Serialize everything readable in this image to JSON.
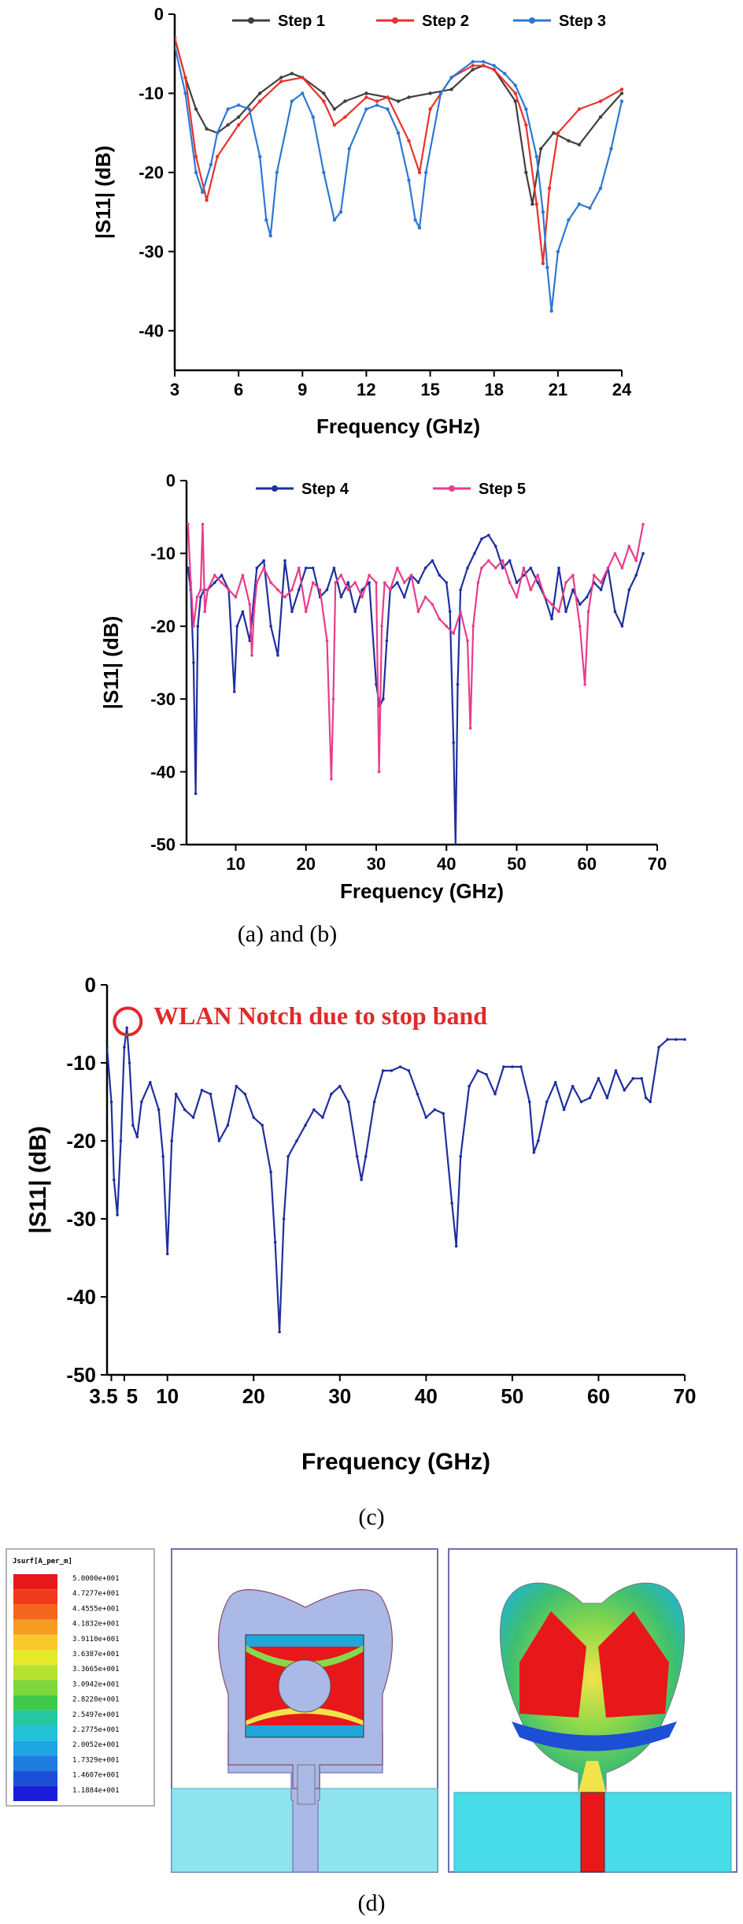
{
  "captions": {
    "ab": "(a) and (b)",
    "c": "(c)",
    "d": "(d)"
  },
  "chart_data": [
    {
      "id": "a",
      "type": "line",
      "xlabel": "Frequency (GHz)",
      "ylabel": "|S11| (dB)",
      "xlim": [
        3,
        24
      ],
      "ylim": [
        -45,
        0
      ],
      "xticks": [
        3,
        6,
        9,
        12,
        15,
        18,
        21,
        24
      ],
      "yticks": [
        0,
        -10,
        -20,
        -30,
        -40
      ],
      "legend": "top",
      "series": [
        {
          "name": "Step 1",
          "color": "#404040",
          "x": [
            3,
            3.5,
            4,
            4.5,
            5,
            5.5,
            6,
            7,
            8,
            8.5,
            9,
            10,
            10.5,
            11,
            12,
            13,
            13.5,
            14,
            15,
            16,
            17,
            17.5,
            18,
            19,
            19.5,
            19.8,
            20.2,
            20.8,
            21.5,
            22,
            23,
            24
          ],
          "y": [
            -3,
            -8,
            -12,
            -14.5,
            -15,
            -14,
            -13,
            -10,
            -8,
            -7.5,
            -8,
            -10,
            -12,
            -11,
            -10,
            -10.5,
            -11,
            -10.5,
            -10,
            -9.5,
            -7,
            -6.5,
            -7,
            -11,
            -20,
            -24,
            -17,
            -15,
            -16,
            -16.5,
            -13,
            -10
          ]
        },
        {
          "name": "Step 2",
          "color": "#e8322d",
          "x": [
            3,
            3.5,
            4,
            4.5,
            5,
            6,
            7,
            8,
            9,
            10,
            10.5,
            11,
            12,
            12.5,
            13,
            14,
            14.5,
            15,
            16,
            17,
            17.5,
            18,
            19,
            19.5,
            20,
            20.3,
            20.6,
            21,
            22,
            23,
            24
          ],
          "y": [
            -3,
            -8,
            -18,
            -23.5,
            -18,
            -14,
            -11,
            -8.5,
            -8,
            -11,
            -14,
            -13,
            -10.5,
            -11,
            -10.5,
            -16,
            -20,
            -12,
            -8,
            -6.5,
            -6.5,
            -7,
            -10,
            -14,
            -24,
            -31.5,
            -22,
            -15,
            -12,
            -11,
            -9.5
          ]
        },
        {
          "name": "Step 3",
          "color": "#2d78d2",
          "x": [
            3,
            3.5,
            4,
            4.3,
            4.7,
            5,
            5.5,
            6,
            6.5,
            7,
            7.3,
            7.5,
            7.8,
            8.5,
            9,
            9.5,
            10,
            10.5,
            10.8,
            11.2,
            12,
            12.5,
            13,
            13.5,
            14,
            14.3,
            14.5,
            14.8,
            15.5,
            16,
            17,
            17.5,
            18,
            18.5,
            19,
            19.5,
            20,
            20.3,
            20.5,
            20.7,
            21,
            21.5,
            22,
            22.5,
            23,
            23.5,
            24
          ],
          "y": [
            -4,
            -10,
            -20,
            -22.5,
            -19,
            -15,
            -12,
            -11.5,
            -12,
            -18,
            -26,
            -28,
            -20,
            -11,
            -10,
            -13,
            -20,
            -26,
            -25,
            -17,
            -12,
            -11.5,
            -12,
            -15,
            -21,
            -26,
            -27,
            -20,
            -10,
            -8,
            -6,
            -6,
            -6.5,
            -7.5,
            -9,
            -12,
            -18,
            -25,
            -32,
            -37.5,
            -30,
            -26,
            -24,
            -24.5,
            -22,
            -17,
            -11
          ]
        }
      ]
    },
    {
      "id": "b",
      "type": "line",
      "xlabel": "Frequency (GHz)",
      "ylabel": "|S11| (dB)",
      "xlim": [
        3,
        70
      ],
      "ylim": [
        -50,
        0
      ],
      "xticks": [
        10,
        20,
        30,
        40,
        50,
        60,
        70
      ],
      "yticks": [
        0,
        -10,
        -20,
        -30,
        -40,
        -50
      ],
      "legend": "top",
      "series": [
        {
          "name": "Step 4",
          "color": "#1f2f9e",
          "x": [
            3.2,
            3.6,
            4,
            4.3,
            4.6,
            5,
            5.5,
            6,
            7,
            8,
            9,
            9.8,
            10.2,
            11,
            12,
            13,
            14,
            15,
            16,
            17,
            18,
            19,
            20,
            21,
            22,
            23,
            24,
            25,
            26,
            27,
            28,
            29,
            30,
            30.5,
            31,
            31.5,
            32,
            33,
            34,
            35,
            36,
            37,
            38,
            39,
            40,
            40.5,
            41,
            41.3,
            41.6,
            42,
            43,
            44,
            45,
            46,
            47,
            48,
            49,
            50,
            51,
            52,
            53,
            54,
            55,
            56,
            57,
            58,
            59,
            60,
            61,
            62,
            63,
            64,
            65,
            66,
            67,
            68
          ],
          "y": [
            -12,
            -15,
            -25,
            -43,
            -20,
            -16,
            -15,
            -15,
            -14,
            -13,
            -15,
            -29,
            -20,
            -18,
            -22,
            -12,
            -11,
            -20,
            -24,
            -11,
            -18,
            -15,
            -12,
            -12,
            -16,
            -15,
            -12,
            -16,
            -14,
            -18,
            -15,
            -14,
            -28,
            -31,
            -30,
            -22,
            -15,
            -14,
            -16,
            -13,
            -14,
            -12,
            -11,
            -13,
            -14,
            -18,
            -36,
            -50,
            -28,
            -15,
            -12,
            -10,
            -8,
            -7.5,
            -9,
            -12,
            -11,
            -14,
            -13,
            -12,
            -14,
            -16,
            -19,
            -12,
            -18,
            -15,
            -17,
            -16,
            -14,
            -15,
            -12,
            -18,
            -20,
            -15,
            -13,
            -10
          ]
        },
        {
          "name": "Step 5",
          "color": "#e83d8a",
          "x": [
            3.2,
            3.6,
            4,
            4.5,
            5,
            5.3,
            5.6,
            6,
            7,
            8,
            9,
            10,
            11,
            12,
            12.3,
            12.6,
            13,
            14,
            15,
            16,
            17,
            18,
            19,
            20,
            21,
            22,
            23,
            23.6,
            23.9,
            24.2,
            25,
            26,
            27,
            28,
            29,
            30,
            30.4,
            30.8,
            31.2,
            32,
            33,
            34,
            35,
            36,
            37,
            38,
            39,
            40,
            41,
            42,
            43,
            43.4,
            43.8,
            44.5,
            45,
            46,
            47,
            48,
            49,
            50,
            51,
            52,
            53,
            54,
            55,
            56,
            57,
            58,
            59,
            59.7,
            60.2,
            61,
            62,
            63,
            64,
            65,
            66,
            67,
            68
          ],
          "y": [
            -6,
            -14,
            -20,
            -16,
            -15,
            -6,
            -18,
            -15,
            -13,
            -14,
            -15,
            -16,
            -13,
            -17,
            -24,
            -18,
            -14,
            -12,
            -14,
            -15,
            -16,
            -15,
            -12,
            -18,
            -14,
            -15,
            -22,
            -41,
            -30,
            -14,
            -13,
            -15,
            -14,
            -16,
            -13,
            -14,
            -40,
            -20,
            -14,
            -15,
            -12,
            -14,
            -13,
            -18,
            -16,
            -17,
            -19,
            -20,
            -21,
            -18,
            -22,
            -34,
            -20,
            -14,
            -12,
            -11,
            -12,
            -11,
            -14,
            -16,
            -12,
            -15,
            -13,
            -16,
            -17,
            -18,
            -14,
            -13,
            -20,
            -28,
            -18,
            -13,
            -14,
            -12,
            -10,
            -12,
            -9,
            -11,
            -6
          ]
        }
      ]
    },
    {
      "id": "c",
      "type": "line",
      "xlabel": "Frequency (GHz)",
      "ylabel": "|S11| (dB)",
      "xlim": [
        3,
        70
      ],
      "ylim": [
        -50,
        0
      ],
      "xticks": [
        3.5,
        5,
        10,
        20,
        30,
        40,
        50,
        60,
        70
      ],
      "xticklabels": [
        "3.5",
        "5",
        "10",
        "20",
        "30",
        "40",
        "50",
        "60",
        "70"
      ],
      "yticks": [
        0,
        -10,
        -20,
        -30,
        -40,
        -50
      ],
      "annotation": "WLAN Notch due to stop band",
      "series": [
        {
          "name": "",
          "color": "#1f2f9e",
          "x": [
            3,
            3.5,
            3.8,
            4.2,
            4.6,
            5,
            5.3,
            5.6,
            6,
            6.5,
            7,
            8,
            9,
            9.5,
            10,
            10.5,
            11,
            12,
            13,
            14,
            15,
            16,
            17,
            18,
            19,
            20,
            21,
            22,
            22.5,
            23,
            23.5,
            24,
            25,
            26,
            27,
            28,
            29,
            30,
            31,
            32,
            32.5,
            33,
            34,
            35,
            36,
            37,
            38,
            39,
            40,
            41,
            42,
            43,
            43.5,
            44,
            45,
            46,
            47,
            48,
            49,
            50,
            51,
            52,
            52.5,
            53,
            54,
            55,
            56,
            57,
            58,
            59,
            60,
            61,
            62,
            63,
            64,
            65,
            65.5,
            66,
            67,
            68,
            69,
            70
          ],
          "y": [
            -8,
            -15,
            -25,
            -29.5,
            -20,
            -8,
            -5.5,
            -10,
            -18,
            -19.5,
            -15,
            -12.5,
            -16,
            -22,
            -34.5,
            -20,
            -14,
            -16,
            -17,
            -13.5,
            -14,
            -20,
            -18,
            -13,
            -14,
            -17,
            -18,
            -24,
            -33,
            -44.5,
            -30,
            -22,
            -20,
            -18,
            -16,
            -17,
            -14,
            -13,
            -15,
            -22,
            -25,
            -22,
            -15,
            -11,
            -11,
            -10.5,
            -11,
            -14,
            -17,
            -16,
            -16.5,
            -28,
            -33.5,
            -22,
            -13,
            -11,
            -11.5,
            -14,
            -10.5,
            -10.5,
            -10.5,
            -15,
            -21.5,
            -20,
            -15,
            -12.5,
            -16,
            -13,
            -15,
            -14.5,
            -12,
            -14.5,
            -11,
            -13.5,
            -12,
            -12,
            -14.5,
            -15,
            -8,
            -7,
            -7,
            -7
          ]
        }
      ]
    }
  ],
  "colorbar": {
    "title": "Jsurf[A_per_m]",
    "labels": [
      "5.0000e+001",
      "4.7277e+001",
      "4.4555e+001",
      "4.1832e+001",
      "3.9110e+001",
      "3.6387e+001",
      "3.3665e+001",
      "3.0942e+001",
      "2.8220e+001",
      "2.5497e+001",
      "2.2775e+001",
      "2.0052e+001",
      "1.7329e+001",
      "1.4607e+001",
      "1.1884e+001"
    ],
    "colors": [
      "#e8171a",
      "#f03a1c",
      "#f4661e",
      "#f79c22",
      "#f9c82a",
      "#e6e82a",
      "#b5e22e",
      "#7fd63a",
      "#3fc94a",
      "#25c6a0",
      "#21c1d6",
      "#1fa4e2",
      "#1f7ce0",
      "#1c4fd6",
      "#1a1edb"
    ]
  }
}
